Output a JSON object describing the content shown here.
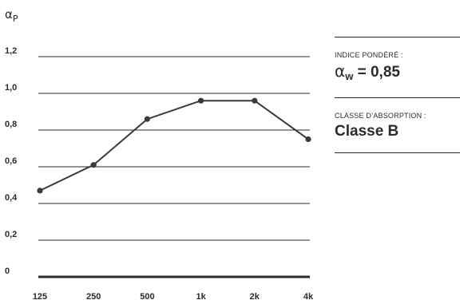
{
  "chart_data": {
    "type": "line",
    "ylabel": {
      "symbol": "α",
      "subscript": "P"
    },
    "categories": [
      "125",
      "250",
      "500",
      "1k",
      "2k",
      "4k"
    ],
    "values": [
      0.47,
      0.61,
      0.86,
      0.96,
      0.96,
      0.75
    ],
    "ylim": [
      0,
      1.2
    ],
    "yticks": [
      {
        "value": 0,
        "label": "0"
      },
      {
        "value": 0.2,
        "label": "0,2"
      },
      {
        "value": 0.4,
        "label": "0,4"
      },
      {
        "value": 0.6,
        "label": "0,6"
      },
      {
        "value": 0.8,
        "label": "0,8"
      },
      {
        "value": 1.0,
        "label": "1,0"
      },
      {
        "value": 1.2,
        "label": "1,2"
      }
    ],
    "grid": true,
    "line_color": "#3a3a3a"
  },
  "panel": {
    "weighted_index": {
      "caption": "INDICE PONDÉRÉ :",
      "symbol": "α",
      "subscript": "w",
      "value_text": "= 0,85"
    },
    "absorption_class": {
      "caption": "CLASSE D’ABSORPTION :",
      "value": "Classe B"
    }
  }
}
